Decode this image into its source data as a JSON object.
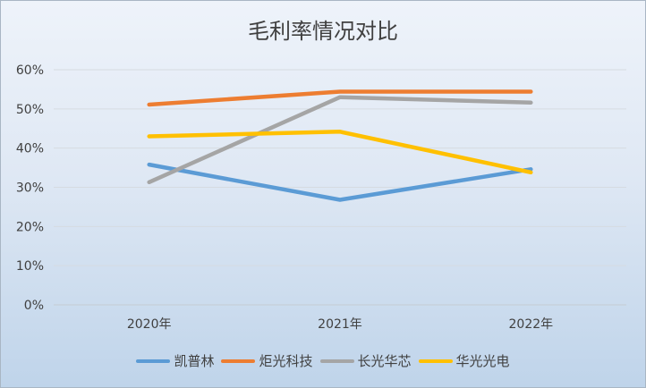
{
  "chart_data": {
    "type": "line",
    "title": "毛利率情况对比",
    "categories": [
      "2020年",
      "2021年",
      "2022年"
    ],
    "ylim": [
      0,
      60
    ],
    "yticks": [
      "0%",
      "10%",
      "20%",
      "30%",
      "40%",
      "50%",
      "60%"
    ],
    "grid": true,
    "legend_position": "bottom",
    "series": [
      {
        "name": "凯普林",
        "color": "#5B9BD5",
        "values": [
          35.8,
          26.8,
          34.6
        ]
      },
      {
        "name": "炬光科技",
        "color": "#ED7D31",
        "values": [
          51.1,
          54.4,
          54.4
        ]
      },
      {
        "name": "长光华芯",
        "color": "#A5A5A5",
        "values": [
          31.3,
          53.0,
          51.6
        ]
      },
      {
        "name": "华光光电",
        "color": "#FFC000",
        "values": [
          43.0,
          44.2,
          33.8
        ]
      }
    ]
  }
}
